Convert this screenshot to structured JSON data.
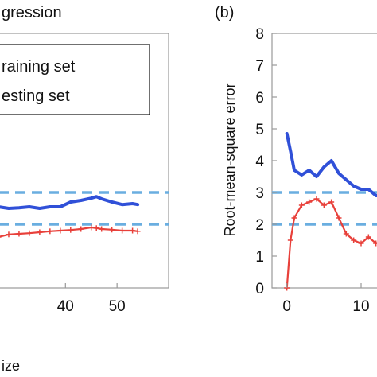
{
  "chart_data": [
    {
      "panel": "(a)",
      "title": "gression",
      "type": "line",
      "xlabel": "ize",
      "xlim": [
        27,
        60
      ],
      "ylim": [
        0,
        8
      ],
      "xticks": [
        40,
        50
      ],
      "grid": false,
      "legend": {
        "placement": "top",
        "entries": [
          "raining set",
          "esting set"
        ]
      },
      "reference_lines": [
        {
          "value": 3,
          "style": "dashed",
          "color": "#6aaee0"
        },
        {
          "value": 2,
          "style": "dashed",
          "color": "#6aaee0"
        }
      ],
      "series": [
        {
          "color": "#3050d8",
          "x": [
            27,
            29,
            31,
            33,
            35,
            37,
            39,
            41,
            43,
            45,
            46,
            47,
            49,
            51,
            53,
            54
          ],
          "y": [
            2.55,
            2.5,
            2.52,
            2.55,
            2.5,
            2.55,
            2.55,
            2.7,
            2.75,
            2.82,
            2.87,
            2.8,
            2.7,
            2.62,
            2.65,
            2.62
          ]
        },
        {
          "color": "#e8403a",
          "x": [
            27,
            29,
            31,
            33,
            35,
            37,
            39,
            41,
            43,
            45,
            46,
            47,
            49,
            51,
            53,
            54
          ],
          "y": [
            1.6,
            1.68,
            1.7,
            1.72,
            1.75,
            1.78,
            1.8,
            1.82,
            1.85,
            1.9,
            1.88,
            1.85,
            1.83,
            1.8,
            1.8,
            1.78
          ]
        }
      ]
    },
    {
      "panel": "(b)",
      "type": "line",
      "ylabel": "Root-mean-square error",
      "xlim": [
        -2,
        13
      ],
      "ylim": [
        0,
        8
      ],
      "yticks": [
        0,
        1,
        2,
        3,
        4,
        5,
        6,
        7,
        8
      ],
      "xticks": [
        0,
        10
      ],
      "grid": false,
      "reference_lines": [
        {
          "value": 3,
          "style": "dashed",
          "color": "#6aaee0"
        },
        {
          "value": 2,
          "style": "dashed",
          "color": "#6aaee0"
        }
      ],
      "series": [
        {
          "color": "#3050d8",
          "x": [
            0,
            0.5,
            1,
            2,
            3,
            4,
            5,
            6,
            7,
            8,
            9,
            10,
            11,
            12,
            13
          ],
          "y": [
            4.85,
            4.3,
            3.7,
            3.55,
            3.7,
            3.5,
            3.8,
            4.0,
            3.6,
            3.4,
            3.2,
            3.1,
            3.1,
            2.9,
            2.9
          ]
        },
        {
          "color": "#e8403a",
          "x": [
            0,
            0.5,
            1,
            2,
            3,
            4,
            5,
            6,
            7,
            8,
            9,
            10,
            11,
            12,
            13
          ],
          "y": [
            0,
            1.5,
            2.2,
            2.6,
            2.7,
            2.8,
            2.6,
            2.7,
            2.2,
            1.7,
            1.5,
            1.4,
            1.6,
            1.4,
            1.5
          ]
        }
      ]
    }
  ]
}
